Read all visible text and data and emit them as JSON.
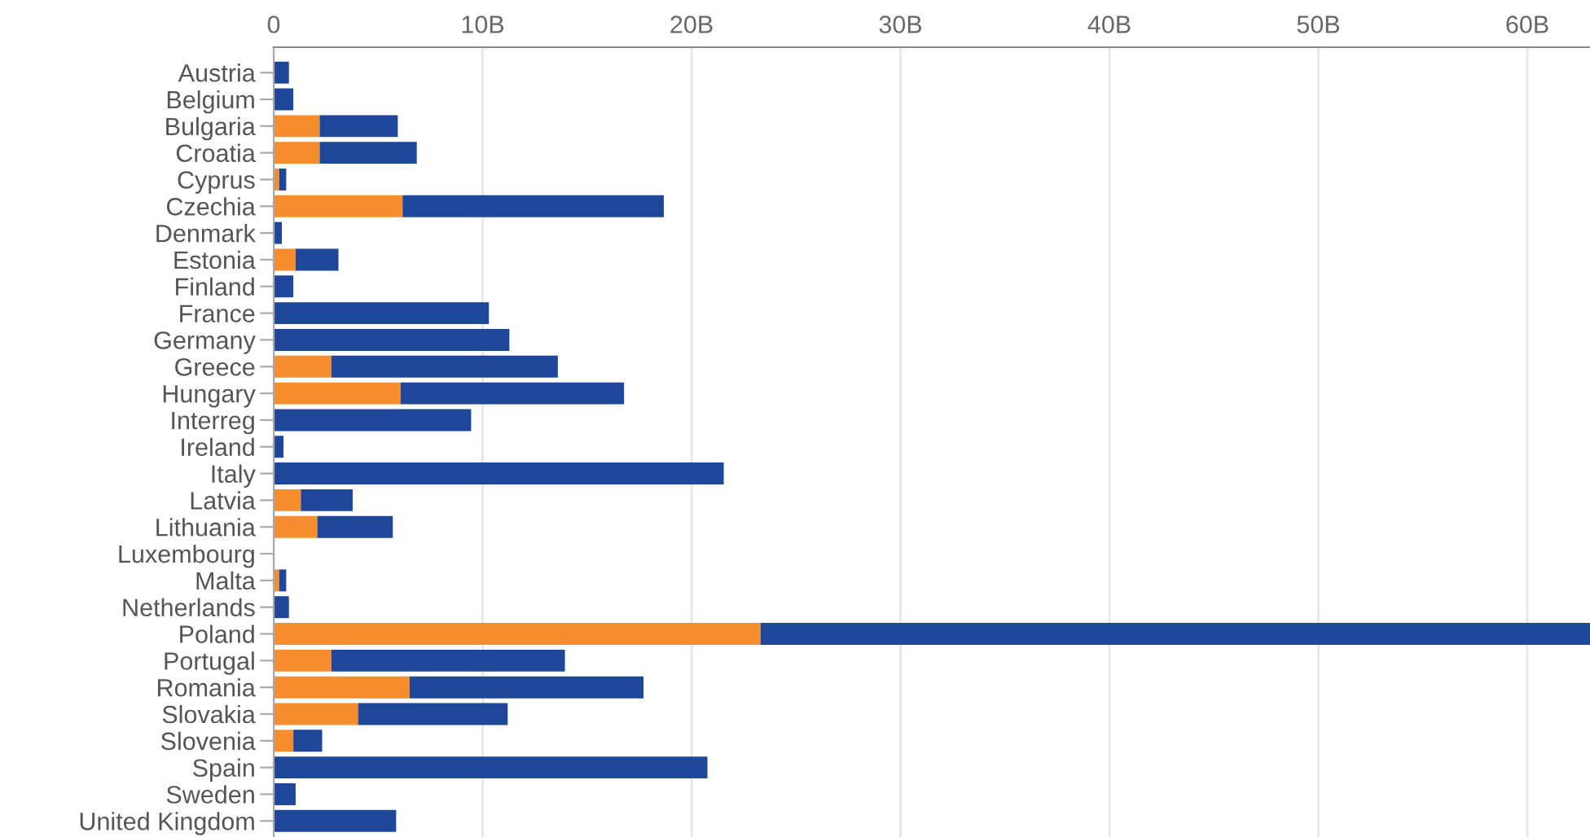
{
  "chart_data": {
    "type": "bar",
    "orientation": "horizontal",
    "stacked": true,
    "categories": [
      "Austria",
      "Belgium",
      "Bulgaria",
      "Croatia",
      "Cyprus",
      "Czechia",
      "Denmark",
      "Estonia",
      "Finland",
      "France",
      "Germany",
      "Greece",
      "Hungary",
      "Interreg",
      "Ireland",
      "Italy",
      "Latvia",
      "Lithuania",
      "Luxembourg",
      "Malta",
      "Netherlands",
      "Poland",
      "Portugal",
      "Romania",
      "Slovakia",
      "Slovenia",
      "Spain",
      "Sweden",
      "United Kingdom"
    ],
    "series": [
      {
        "color": "#f68d2e",
        "values": [
          0,
          0,
          2.2,
          2.2,
          0.26,
          6.17,
          0,
          1.05,
          0,
          0,
          0,
          2.76,
          6.07,
          0,
          0,
          0,
          1.3,
          2.09,
          0,
          0.26,
          0,
          23.3,
          2.76,
          6.51,
          4.04,
          0.94,
          0,
          0,
          0
        ]
      },
      {
        "color": "#1f4799",
        "values": [
          0.73,
          0.94,
          3.74,
          4.65,
          0.34,
          12.5,
          0.39,
          2.05,
          0.94,
          10.3,
          11.28,
          10.84,
          10.7,
          9.45,
          0.47,
          21.54,
          2.48,
          3.61,
          0,
          0.34,
          0.73,
          39.7,
          11.18,
          11.19,
          7.16,
          1.38,
          20.76,
          1.05,
          5.86
        ]
      }
    ],
    "xlim": [
      0,
      63
    ],
    "xticks": [
      0,
      {
        "value": 10,
        "label": "10B"
      },
      {
        "value": 20,
        "label": "20B"
      },
      {
        "value": 30,
        "label": "30B"
      },
      {
        "value": 40,
        "label": "40B"
      },
      {
        "value": 50,
        "label": "50B"
      },
      {
        "value": 60,
        "label": "60B"
      }
    ],
    "grid": "x"
  }
}
